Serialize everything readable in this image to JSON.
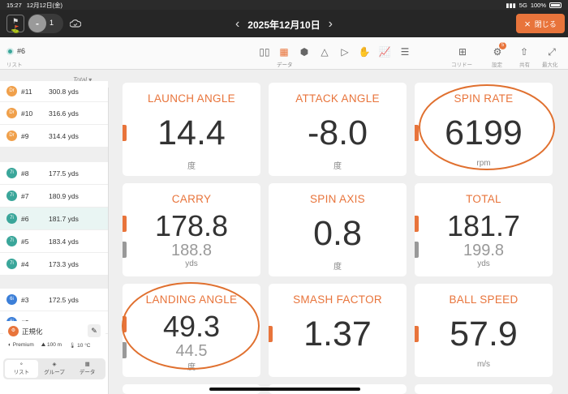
{
  "status": {
    "time": "15:27",
    "date": "12月12日(金)",
    "signal": "5G",
    "battery": "100%"
  },
  "header": {
    "counter": "1",
    "minus": "-",
    "date": "2025年12月10日",
    "prev": "‹",
    "next": "›",
    "close_label": "閉じる",
    "close_icon": "×"
  },
  "toolbar": {
    "selected_club": "#6",
    "list_label": "リスト",
    "data_label": "データ",
    "corridor_label": "コリドー",
    "settings_label": "設定",
    "share_label": "共有",
    "maximize_label": "最大化",
    "settings_badge": "5"
  },
  "sidebar": {
    "sort_label": "Total",
    "groups": [
      [
        {
          "badge": "Dr",
          "club": "#11",
          "dist": "300.8 yds"
        },
        {
          "badge": "Dr",
          "club": "#10",
          "dist": "316.6 yds"
        },
        {
          "badge": "Dr",
          "club": "#9",
          "dist": "314.4 yds"
        }
      ],
      [
        {
          "badge": "7i",
          "club": "#8",
          "dist": "177.5 yds"
        },
        {
          "badge": "7i",
          "club": "#7",
          "dist": "180.9 yds"
        },
        {
          "badge": "7i",
          "club": "#6",
          "dist": "181.7 yds"
        },
        {
          "badge": "7i",
          "club": "#5",
          "dist": "183.4 yds"
        },
        {
          "badge": "7i",
          "club": "#4",
          "dist": "173.3 yds"
        }
      ],
      [
        {
          "badge": "6i",
          "club": "#3",
          "dist": "172.5 yds"
        },
        {
          "badge": "6i",
          "club": "#2",
          "dist": ""
        }
      ]
    ],
    "normalize": {
      "title": "正規化",
      "ball": "Premium",
      "distance": "100 m",
      "temp": "10 °C"
    },
    "tabs": [
      "リスト",
      "グループ",
      "データ"
    ]
  },
  "cards": [
    {
      "label": "LAUNCH ANGLE",
      "value": "14.4",
      "sub": "",
      "unit": "度"
    },
    {
      "label": "ATTACK ANGLE",
      "value": "-8.0",
      "sub": "",
      "unit": "度"
    },
    {
      "label": "SPIN RATE",
      "value": "6199",
      "sub": "",
      "unit": "rpm"
    },
    {
      "label": "CARRY",
      "value": "178.8",
      "sub": "188.8",
      "unit": "yds"
    },
    {
      "label": "SPIN AXIS",
      "value": "0.8",
      "sub": "",
      "unit": "度"
    },
    {
      "label": "TOTAL",
      "value": "181.7",
      "sub": "199.8",
      "unit": "yds"
    },
    {
      "label": "LANDING ANGLE",
      "value": "49.3",
      "sub": "44.5",
      "unit": "度"
    },
    {
      "label": "SMASH FACTOR",
      "value": "1.37",
      "sub": "",
      "unit": ""
    },
    {
      "label": "BALL SPEED",
      "value": "57.9",
      "sub": "",
      "unit": "m/s"
    }
  ],
  "colors": {
    "accent": "#e8743b",
    "teal": "#3aa69a",
    "blue": "#3c7fd8",
    "orange_badge": "#f0a04b"
  }
}
